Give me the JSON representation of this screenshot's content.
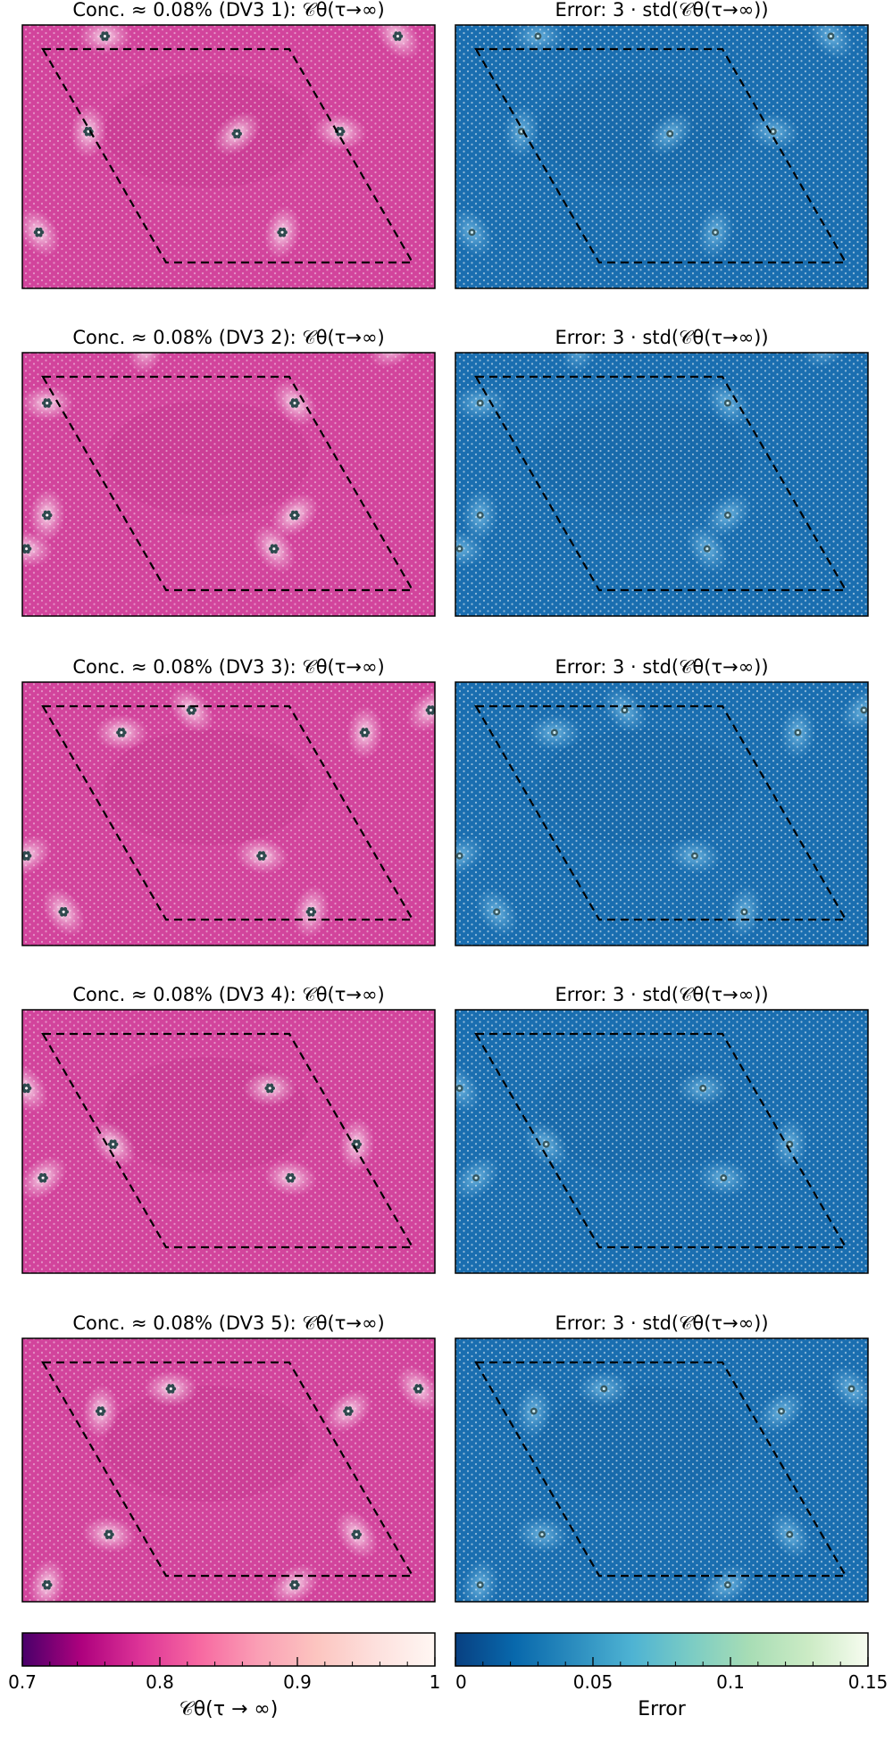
{
  "figure": {
    "rows": [
      {
        "left_title": "Conc. ≈ 0.08% (DV3 1): 𝒞θ(τ→∞)",
        "right_title": "Error: 3 · std(𝒞θ(τ→∞))"
      },
      {
        "left_title": "Conc. ≈ 0.08% (DV3 2): 𝒞θ(τ→∞)",
        "right_title": "Error: 3 · std(𝒞θ(τ→∞))"
      },
      {
        "left_title": "Conc. ≈ 0.08% (DV3 3): 𝒞θ(τ→∞)",
        "right_title": "Error: 3 · std(𝒞θ(τ→∞))"
      },
      {
        "left_title": "Conc. ≈ 0.08% (DV3 4): 𝒞θ(τ→∞)",
        "right_title": "Error: 3 · std(𝒞θ(τ→∞))"
      },
      {
        "left_title": "Conc. ≈ 0.08% (DV3 5): 𝒞θ(τ→∞)",
        "right_title": "Error: 3 · std(𝒞θ(τ→∞))"
      }
    ]
  },
  "colors": {
    "magenta_base": "#d2449c",
    "magenta_light": "#fbe0ee",
    "magenta_dark": "#b3287f",
    "blue_base": "#1a6eb0",
    "blue_light": "#6fb6e0",
    "blue_dark": "#0f5a98",
    "defect": "#2e4a4e",
    "cmap_pink": [
      "#49006a",
      "#ae017e",
      "#dd3497",
      "#f768a1",
      "#fa9fb5",
      "#fcc5c0",
      "#fde0dd",
      "#fff7f3"
    ],
    "cmap_blue": [
      "#084081",
      "#0868ac",
      "#2b8cbe",
      "#4eb3d3",
      "#7bccc4",
      "#a8ddb5",
      "#ccebc5",
      "#f7fcf0"
    ]
  },
  "chart_data": {
    "type": "heatmap",
    "panels": [
      {
        "row": 1,
        "quantity": "C_theta",
        "defects": [
          [
            2.0,
            0.1
          ],
          [
            9.1,
            0.1
          ],
          [
            1.6,
            0.95
          ],
          [
            5.2,
            0.97
          ],
          [
            7.7,
            0.95
          ],
          [
            0.4,
            1.85
          ],
          [
            6.3,
            1.85
          ]
        ]
      },
      {
        "row": 2,
        "quantity": "C_theta",
        "defects": [
          [
            0.6,
            0.45
          ],
          [
            6.6,
            0.45
          ],
          [
            0.6,
            1.45
          ],
          [
            6.6,
            1.45
          ],
          [
            0.1,
            1.75
          ],
          [
            6.1,
            1.75
          ],
          [
            3.0,
            -0.05
          ],
          [
            9.0,
            -0.05
          ]
        ]
      },
      {
        "row": 3,
        "quantity": "C_theta",
        "defects": [
          [
            2.4,
            0.45
          ],
          [
            4.1,
            0.25
          ],
          [
            8.3,
            0.45
          ],
          [
            9.9,
            0.25
          ],
          [
            5.8,
            1.55
          ],
          [
            1.0,
            2.05
          ],
          [
            7.0,
            2.05
          ],
          [
            0.1,
            1.55
          ]
        ]
      },
      {
        "row": 4,
        "quantity": "C_theta",
        "defects": [
          [
            6.0,
            0.7
          ],
          [
            2.2,
            1.2
          ],
          [
            8.1,
            1.2
          ],
          [
            0.5,
            1.5
          ],
          [
            6.5,
            1.5
          ],
          [
            0.1,
            0.7
          ]
        ]
      },
      {
        "row": 5,
        "quantity": "C_theta",
        "defects": [
          [
            3.6,
            0.45
          ],
          [
            9.6,
            0.45
          ],
          [
            1.9,
            0.65
          ],
          [
            7.9,
            0.65
          ],
          [
            2.1,
            1.75
          ],
          [
            8.1,
            1.75
          ],
          [
            0.6,
            2.2
          ],
          [
            6.6,
            2.2
          ]
        ]
      }
    ],
    "colorbars": [
      {
        "label": "𝒞θ(τ → ∞)",
        "range": [
          0.7,
          1.0
        ],
        "ticks": [
          "0.7",
          "0.8",
          "0.9",
          "1"
        ],
        "tick_values": [
          0.7,
          0.8,
          0.9,
          1.0
        ],
        "colormap": "RdPu"
      },
      {
        "label": "Error",
        "range": [
          0,
          0.15
        ],
        "ticks": [
          "0",
          "0.05",
          "0.1",
          "0.15"
        ],
        "tick_values": [
          0,
          0.05,
          0.1,
          0.15
        ],
        "colormap": "GnBu_r"
      }
    ]
  }
}
